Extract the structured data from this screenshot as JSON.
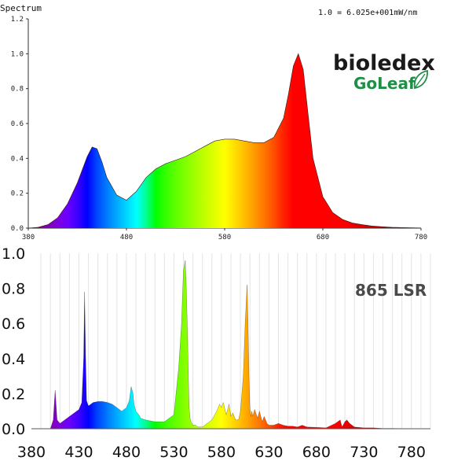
{
  "chart_data": [
    {
      "type": "area",
      "title": "Spectrum",
      "normalization_note": "1.0 = 6.025e+001mW/nm",
      "xlim": [
        380,
        780
      ],
      "ylim": [
        0,
        1.2
      ],
      "xticks": [
        380,
        480,
        580,
        680,
        780
      ],
      "yticks": [
        "0.0",
        "0.2",
        "0.4",
        "0.6",
        "0.8",
        "1.0",
        "1.2"
      ],
      "grid": false,
      "x": [
        380,
        390,
        400,
        410,
        420,
        430,
        440,
        445,
        450,
        455,
        460,
        470,
        480,
        490,
        500,
        510,
        520,
        530,
        540,
        550,
        560,
        570,
        580,
        590,
        600,
        610,
        620,
        630,
        640,
        645,
        650,
        655,
        660,
        665,
        670,
        680,
        690,
        700,
        710,
        720,
        730,
        740,
        750,
        760,
        770,
        780
      ],
      "y": [
        0,
        0.005,
        0.02,
        0.06,
        0.14,
        0.26,
        0.41,
        0.465,
        0.455,
        0.38,
        0.29,
        0.19,
        0.16,
        0.21,
        0.29,
        0.34,
        0.37,
        0.39,
        0.41,
        0.44,
        0.47,
        0.5,
        0.51,
        0.51,
        0.5,
        0.49,
        0.49,
        0.52,
        0.63,
        0.77,
        0.93,
        1.0,
        0.91,
        0.65,
        0.4,
        0.18,
        0.09,
        0.05,
        0.03,
        0.02,
        0.012,
        0.008,
        0.005,
        0.003,
        0.002,
        0.001
      ],
      "logo": {
        "brand": "bioledex",
        "sub": "GoLeaf",
        "brand_color": "#1a1a1a",
        "sub_color": "#1e8f45"
      }
    },
    {
      "type": "area",
      "title": "865 LSR",
      "xlim": [
        380,
        800
      ],
      "ylim": [
        0,
        1.0
      ],
      "xticks": [
        380,
        430,
        480,
        530,
        580,
        630,
        680,
        730,
        780
      ],
      "yticks": [
        "0.0",
        "0.2",
        "0.4",
        "0.6",
        "0.8",
        "1.0"
      ],
      "grid": true,
      "x": [
        400,
        403,
        405,
        407,
        410,
        420,
        430,
        433,
        435,
        436,
        437,
        438,
        440,
        445,
        450,
        455,
        460,
        465,
        470,
        475,
        480,
        483,
        485,
        487,
        488,
        490,
        493,
        495,
        500,
        510,
        520,
        530,
        535,
        538,
        540,
        542,
        543,
        544,
        545,
        546,
        547,
        548,
        550,
        553,
        555,
        560,
        570,
        575,
        578,
        580,
        582,
        585,
        588,
        590,
        592,
        595,
        598,
        600,
        603,
        605,
        607,
        608,
        609,
        610,
        611,
        612,
        613,
        615,
        618,
        620,
        623,
        625,
        628,
        630,
        635,
        640,
        645,
        650,
        655,
        660,
        665,
        670,
        680,
        690,
        700,
        705,
        707,
        710,
        712,
        715,
        720,
        730,
        740,
        750,
        760,
        770,
        780,
        790
      ],
      "y": [
        0,
        0.05,
        0.22,
        0.05,
        0.03,
        0.07,
        0.11,
        0.15,
        0.4,
        0.78,
        0.42,
        0.16,
        0.13,
        0.15,
        0.155,
        0.155,
        0.15,
        0.14,
        0.12,
        0.1,
        0.12,
        0.16,
        0.24,
        0.2,
        0.14,
        0.1,
        0.08,
        0.06,
        0.05,
        0.04,
        0.04,
        0.08,
        0.35,
        0.6,
        0.9,
        0.96,
        0.8,
        0.6,
        0.35,
        0.12,
        0.06,
        0.04,
        0.02,
        0.02,
        0.01,
        0.01,
        0.05,
        0.1,
        0.14,
        0.12,
        0.15,
        0.08,
        0.14,
        0.07,
        0.09,
        0.05,
        0.05,
        0.1,
        0.3,
        0.6,
        0.82,
        0.6,
        0.3,
        0.12,
        0.07,
        0.1,
        0.07,
        0.11,
        0.06,
        0.1,
        0.04,
        0.07,
        0.03,
        0.02,
        0.02,
        0.03,
        0.02,
        0.015,
        0.015,
        0.01,
        0.02,
        0.01,
        0.008,
        0.005,
        0.03,
        0.05,
        0.01,
        0.04,
        0.05,
        0.03,
        0.01,
        0.005,
        0.005,
        0.002,
        0.002,
        0.001,
        0.001,
        0
      ]
    }
  ]
}
